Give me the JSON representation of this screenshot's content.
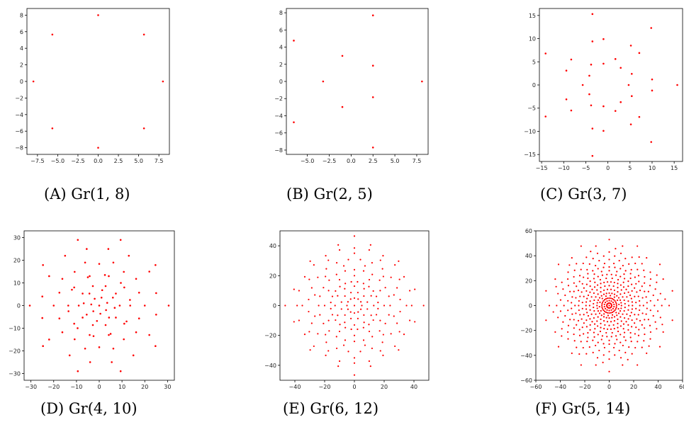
{
  "colors": {
    "point": "#ff0000",
    "axis": "#000000"
  },
  "chart_data": [
    {
      "type": "scatter",
      "caption": "(A) Gr(1, 8)",
      "xlim": [
        -8.8,
        8.8
      ],
      "ylim": [
        -8.8,
        8.8
      ],
      "xticks": [
        -7.5,
        -5.0,
        -2.5,
        0.0,
        2.5,
        5.0,
        7.5
      ],
      "xticklabels": [
        "−7.5",
        "−5.0",
        "−2.5",
        "0.0",
        "2.5",
        "5.0",
        "7.5"
      ],
      "yticks": [
        -8,
        -6,
        -4,
        -2,
        0,
        2,
        4,
        6,
        8
      ],
      "yticklabels": [
        "−8",
        "−6",
        "−4",
        "−2",
        "0",
        "2",
        "4",
        "6",
        "8"
      ],
      "points": [
        [
          0,
          8
        ],
        [
          5.66,
          5.66
        ],
        [
          8,
          0
        ],
        [
          5.66,
          -5.66
        ],
        [
          0,
          -8
        ],
        [
          -5.66,
          -5.66
        ],
        [
          -8,
          0
        ],
        [
          -5.66,
          5.66
        ]
      ]
    },
    {
      "type": "scatter",
      "caption": "(B) Gr(2, 5)",
      "xlim": [
        -7.4,
        8.8
      ],
      "ylim": [
        -8.5,
        8.5
      ],
      "xticks": [
        -5.0,
        -2.5,
        0.0,
        2.5,
        5.0,
        7.5
      ],
      "xticklabels": [
        "−5.0",
        "−2.5",
        "0.0",
        "2.5",
        "5.0",
        "7.5"
      ],
      "yticks": [
        -8,
        -6,
        -4,
        -2,
        0,
        2,
        4,
        6,
        8
      ],
      "yticklabels": [
        "−8",
        "−6",
        "−4",
        "−2",
        "0",
        "2",
        "4",
        "6",
        "8"
      ],
      "points": [
        [
          8.1,
          0
        ],
        [
          2.5,
          7.7
        ],
        [
          -6.55,
          4.76
        ],
        [
          -6.55,
          -4.76
        ],
        [
          2.5,
          -7.7
        ],
        [
          -3.2,
          0
        ],
        [
          -1.0,
          2.98
        ],
        [
          2.5,
          1.84
        ],
        [
          2.5,
          -1.84
        ],
        [
          -1.0,
          -2.98
        ]
      ]
    },
    {
      "type": "scatter",
      "caption": "(C) Gr(3, 7)",
      "xlim": [
        -15.5,
        16.9
      ],
      "ylim": [
        -16.5,
        16.5
      ],
      "xticks": [
        -15,
        -10,
        -5,
        0,
        5,
        10,
        15
      ],
      "xticklabels": [
        "−15",
        "−10",
        "−5",
        "0",
        "5",
        "10",
        "15"
      ],
      "yticks": [
        -15,
        -10,
        -5,
        0,
        5,
        10,
        15
      ],
      "yticklabels": [
        "−15",
        "−10",
        "−5",
        "0",
        "5",
        "10",
        "15"
      ],
      "points": [
        [
          15.7,
          0
        ],
        [
          9.8,
          12.3
        ],
        [
          -3.5,
          15.3
        ],
        [
          -14.1,
          6.8
        ],
        [
          -14.1,
          -6.8
        ],
        [
          -3.5,
          -15.3
        ],
        [
          9.8,
          -12.3
        ],
        [
          10,
          1.2
        ],
        [
          7.1,
          6.9
        ],
        [
          -3.5,
          9.4
        ],
        [
          -9.4,
          3.1
        ],
        [
          -9.4,
          -3.1
        ],
        [
          -3.5,
          -9.4
        ],
        [
          7.1,
          -6.9
        ],
        [
          10,
          -1.2
        ],
        [
          5.2,
          8.5
        ],
        [
          -1.0,
          9.9
        ],
        [
          -8.3,
          5.5
        ],
        [
          -8.3,
          -5.5
        ],
        [
          -1.0,
          -9.9
        ],
        [
          5.2,
          -8.5
        ],
        [
          4.7,
          0
        ],
        [
          2.9,
          3.7
        ],
        [
          -1.0,
          4.6
        ],
        [
          -4.2,
          2.0
        ],
        [
          -4.2,
          -2.0
        ],
        [
          -1.0,
          -4.6
        ],
        [
          2.9,
          -3.7
        ],
        [
          5.4,
          2.4
        ],
        [
          1.7,
          5.6
        ],
        [
          -3.8,
          4.4
        ],
        [
          -5.7,
          0
        ],
        [
          -3.8,
          -4.4
        ],
        [
          1.7,
          -5.6
        ],
        [
          5.4,
          -2.4
        ]
      ]
    },
    {
      "type": "scatter",
      "caption": "(D) Gr(4, 10)",
      "xlim": [
        -33,
        33
      ],
      "ylim": [
        -33,
        33
      ],
      "xticks": [
        -30,
        -20,
        -10,
        0,
        10,
        20,
        30
      ],
      "xticklabels": [
        "−30",
        "−20",
        "−10",
        "0",
        "10",
        "20",
        "30"
      ],
      "yticks": [
        -30,
        -20,
        -10,
        0,
        10,
        20,
        30
      ],
      "yticklabels": [
        "−30",
        "−20",
        "−10",
        "0",
        "10",
        "20",
        "30"
      ],
      "points": [
        [
          30.5,
          0
        ],
        [
          24.7,
          17.9
        ],
        [
          9.4,
          29.0
        ],
        [
          -9.4,
          29.0
        ],
        [
          -24.7,
          17.9
        ],
        [
          -30.5,
          0
        ],
        [
          -24.7,
          -17.9
        ],
        [
          -9.4,
          -29.0
        ],
        [
          9.4,
          -29.0
        ],
        [
          24.7,
          -17.9
        ],
        [
          25.0,
          5.5
        ],
        [
          22.0,
          15.0
        ],
        [
          13.0,
          22.0
        ],
        [
          4.0,
          25.0
        ],
        [
          -5.5,
          25.0
        ],
        [
          -15.0,
          22.0
        ],
        [
          -22.0,
          13.0
        ],
        [
          -25.0,
          4.0
        ],
        [
          -25.0,
          -5.5
        ],
        [
          -22.0,
          -15.0
        ],
        [
          -13.0,
          -22.0
        ],
        [
          -4.0,
          -25.0
        ],
        [
          5.5,
          -25.0
        ],
        [
          15.0,
          -22.0
        ],
        [
          22.0,
          -13.0
        ],
        [
          25.0,
          -4.0
        ],
        [
          20.0,
          0
        ],
        [
          16.2,
          11.8
        ],
        [
          6.2,
          19.0
        ],
        [
          -6.2,
          19.0
        ],
        [
          -16.2,
          11.8
        ],
        [
          -20.0,
          0
        ],
        [
          -16.2,
          -11.8
        ],
        [
          -6.2,
          -19.0
        ],
        [
          6.2,
          -19.0
        ],
        [
          16.2,
          -11.8
        ],
        [
          17.5,
          5.7
        ],
        [
          10.8,
          14.9
        ],
        [
          0,
          18.4
        ],
        [
          -10.8,
          14.9
        ],
        [
          -17.5,
          5.7
        ],
        [
          -17.5,
          -5.7
        ],
        [
          -10.8,
          -14.9
        ],
        [
          0,
          -18.4
        ],
        [
          10.8,
          -14.9
        ],
        [
          17.5,
          -5.7
        ],
        [
          13.5,
          2.5
        ],
        [
          9.5,
          10.0
        ],
        [
          2.5,
          13.5
        ],
        [
          -5.0,
          12.5
        ],
        [
          -12.0,
          7.0
        ],
        [
          -13.5,
          -2.5
        ],
        [
          -9.5,
          -10.0
        ],
        [
          -2.5,
          -13.5
        ],
        [
          5.0,
          -12.5
        ],
        [
          12.0,
          -7.0
        ],
        [
          11.0,
          8.0
        ],
        [
          4.2,
          13.0
        ],
        [
          -4.2,
          13.0
        ],
        [
          -11.0,
          8.0
        ],
        [
          -13.6,
          0
        ],
        [
          -11.0,
          -8.0
        ],
        [
          -4.2,
          -13.0
        ],
        [
          4.2,
          -13.0
        ],
        [
          11.0,
          -8.0
        ],
        [
          13.6,
          0
        ],
        [
          9.0,
          0
        ],
        [
          7.3,
          5.3
        ],
        [
          2.8,
          8.6
        ],
        [
          -2.8,
          8.6
        ],
        [
          -7.3,
          5.3
        ],
        [
          -9.0,
          0
        ],
        [
          -7.3,
          -5.3
        ],
        [
          -2.8,
          -8.6
        ],
        [
          2.8,
          -8.6
        ],
        [
          7.3,
          -5.3
        ],
        [
          6.0,
          3.5
        ],
        [
          1.3,
          6.8
        ],
        [
          -4.3,
          5.3
        ],
        [
          -6.8,
          1.0
        ],
        [
          -5.5,
          -4.0
        ],
        [
          -1.0,
          -6.8
        ],
        [
          4.3,
          -5.3
        ],
        [
          6.8,
          -1.0
        ],
        [
          3.5,
          1.2
        ],
        [
          1.0,
          3.5
        ],
        [
          -2.0,
          3.0
        ],
        [
          -3.5,
          0.5
        ],
        [
          -2.6,
          -2.5
        ],
        [
          0.5,
          -3.6
        ],
        [
          3.0,
          -2.0
        ],
        [
          0,
          0
        ]
      ]
    },
    {
      "type": "scatter",
      "caption": "(E) Gr(6, 12)",
      "xlim": [
        -50,
        50
      ],
      "ylim": [
        -50,
        50
      ],
      "xticks": [
        -40,
        -20,
        0,
        20,
        40
      ],
      "xticklabels": [
        "−40",
        "−20",
        "0",
        "20",
        "40"
      ],
      "yticks": [
        -40,
        -20,
        0,
        20,
        40
      ],
      "yticklabels": [
        "−40",
        "−20",
        "0",
        "20",
        "40"
      ],
      "points": []
    },
    {
      "type": "scatter",
      "caption": "(F) Gr(5, 14)",
      "xlim": [
        -60,
        60
      ],
      "ylim": [
        -60,
        60
      ],
      "xticks": [
        -60,
        -40,
        -20,
        0,
        20,
        40,
        60
      ],
      "xticklabels": [
        "−60",
        "−40",
        "−20",
        "0",
        "20",
        "40",
        "60"
      ],
      "yticks": [
        -60,
        -40,
        -20,
        0,
        20,
        40,
        60
      ],
      "yticklabels": [
        "−60",
        "−40",
        "−20",
        "0",
        "20",
        "40",
        "60"
      ],
      "points": []
    }
  ],
  "captions": {
    "a": "(A) Gr(1, 8)",
    "b": "(B) Gr(2, 5)",
    "c": "(C) Gr(3, 7)",
    "d": "(D) Gr(4, 10)",
    "e": "(E) Gr(6, 12)",
    "f": "(F) Gr(5, 14)"
  }
}
